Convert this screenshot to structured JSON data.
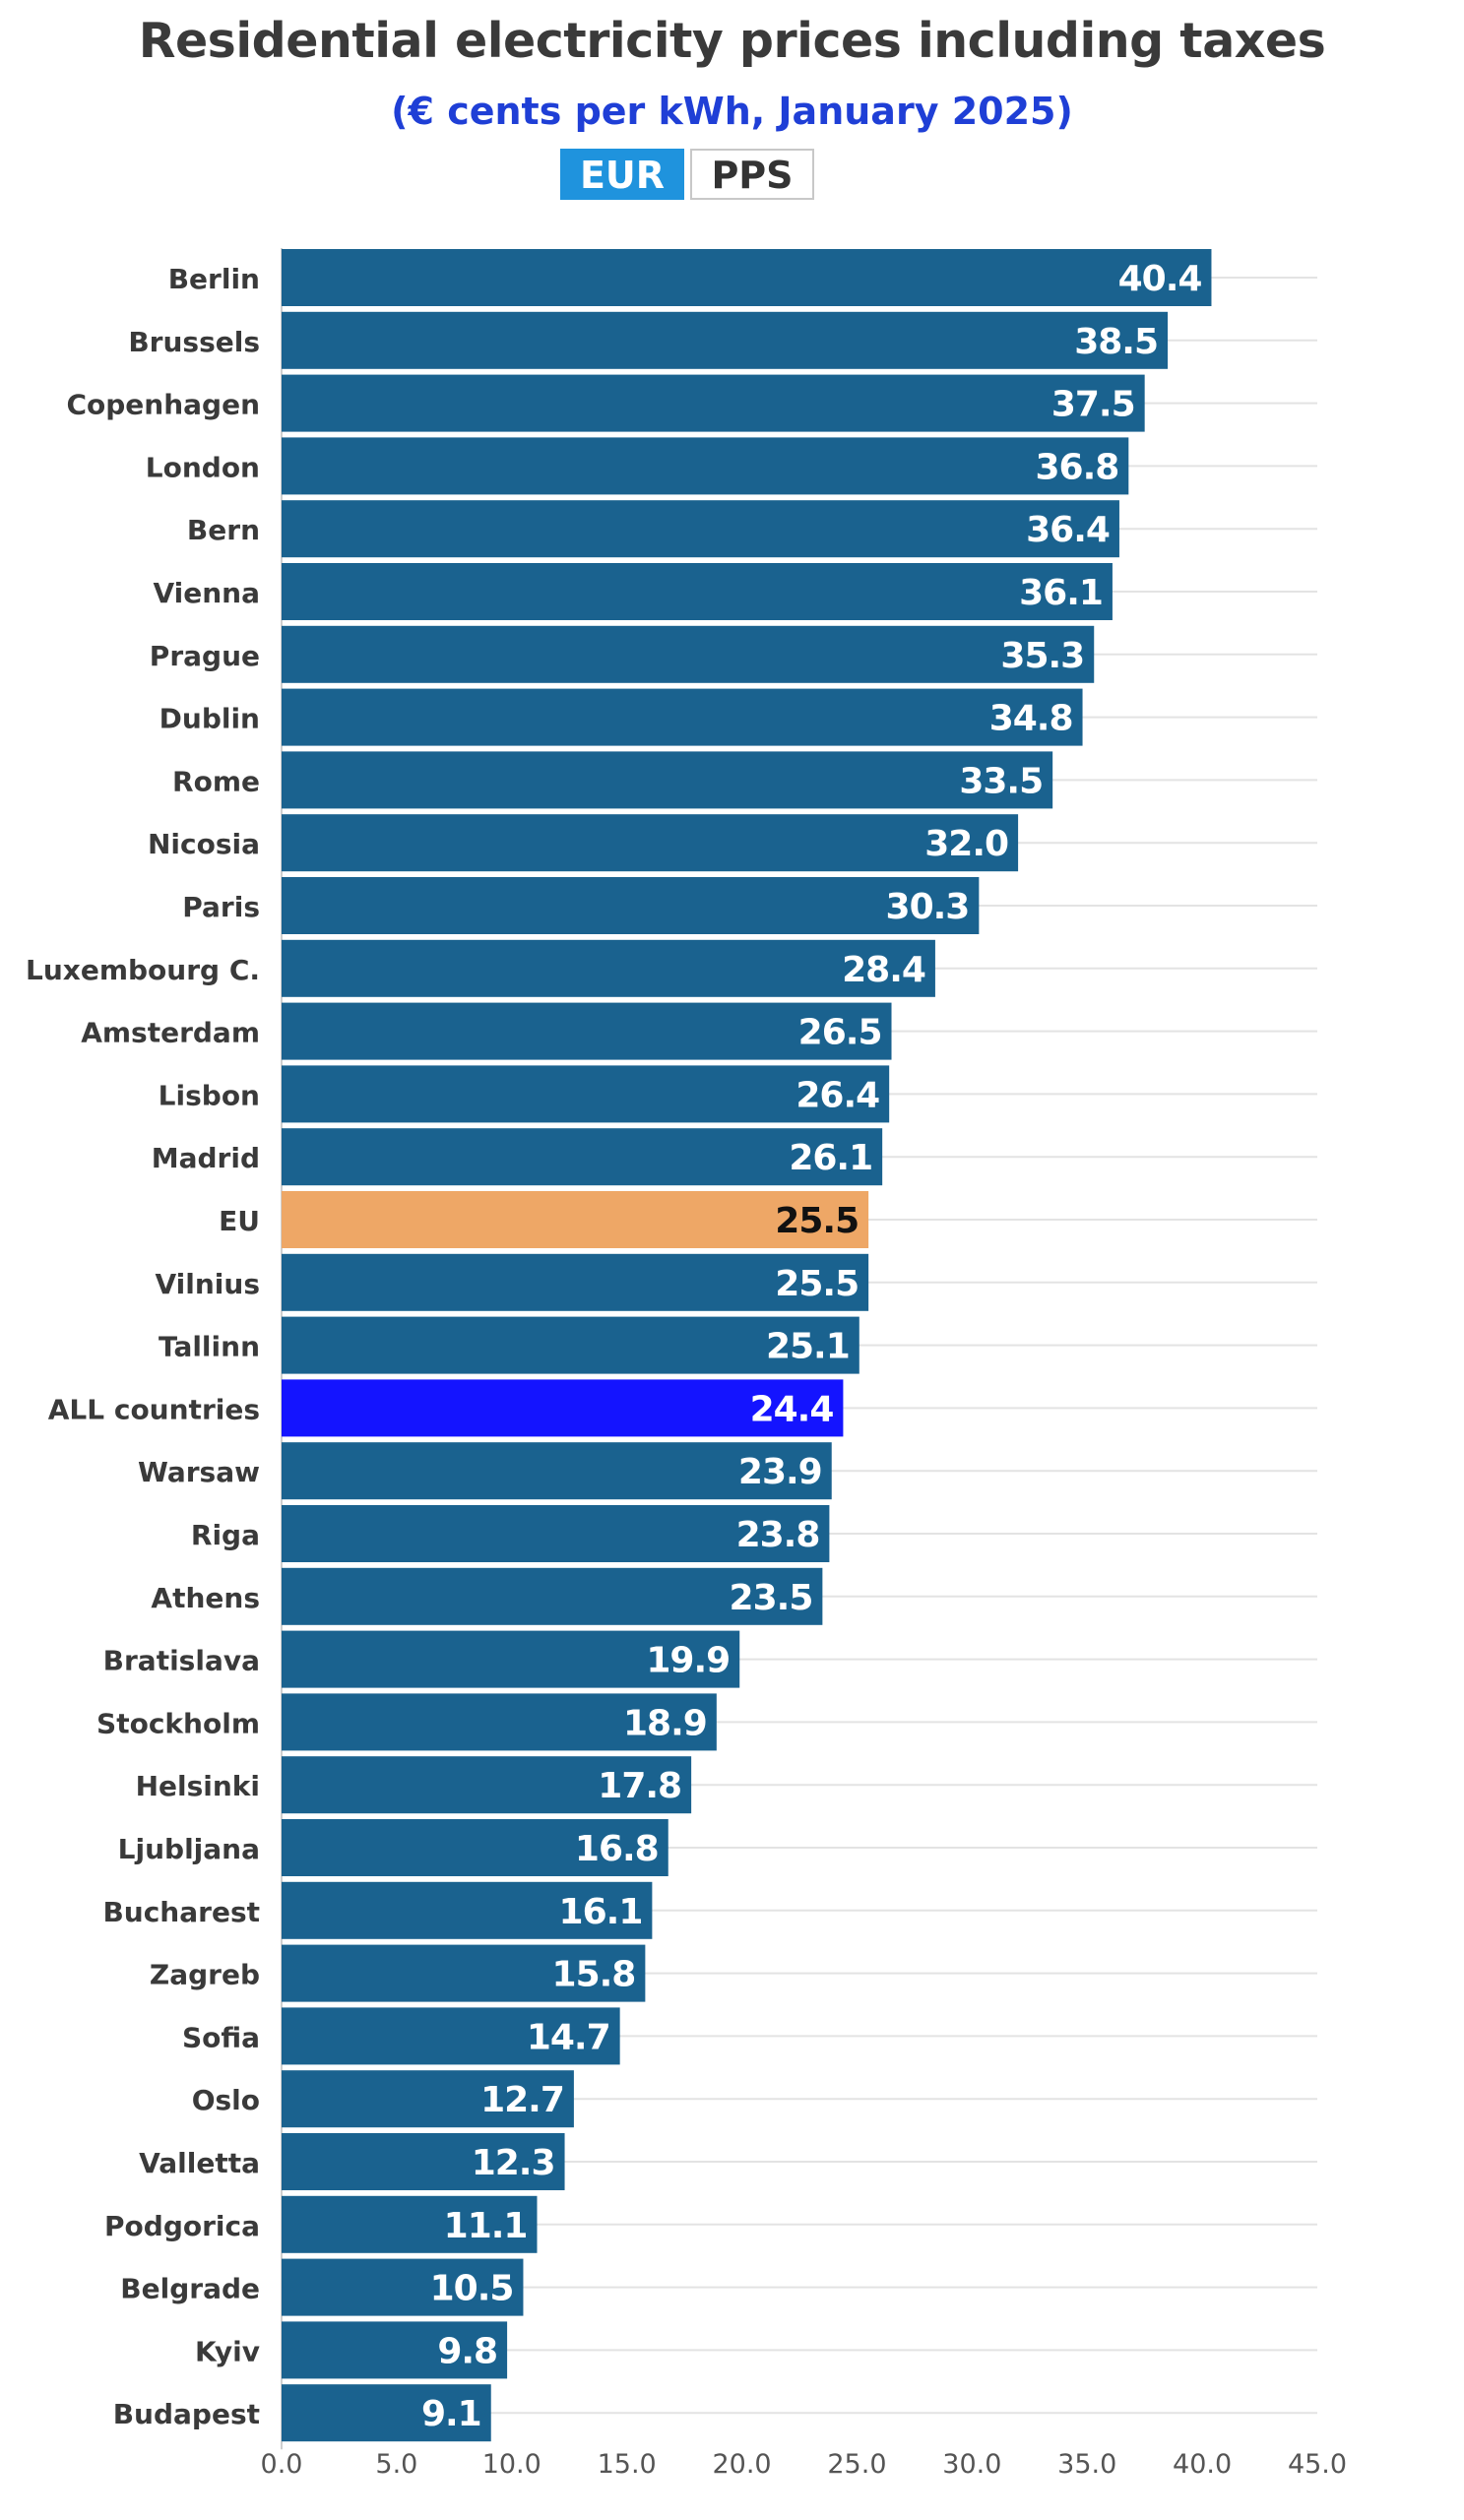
{
  "header": {
    "title": "Residential electricity prices including taxes",
    "subtitle": "(€ cents per kWh, January 2025)"
  },
  "toggle": {
    "options": [
      "EUR",
      "PPS"
    ],
    "selected": "EUR"
  },
  "colors": {
    "bar": "#1a628f",
    "eu": "#eea766",
    "all_countries": "#1414ff",
    "gridline": "#e3e3e3",
    "label": "#3a3a3a",
    "value_label": "#ffffff",
    "value_label_eu": "#111111"
  },
  "chart_data": {
    "type": "bar",
    "orientation": "horizontal",
    "categories": [
      "Berlin",
      "Brussels",
      "Copenhagen",
      "London",
      "Bern",
      "Vienna",
      "Prague",
      "Dublin",
      "Rome",
      "Nicosia",
      "Paris",
      "Luxembourg C.",
      "Amsterdam",
      "Lisbon",
      "Madrid",
      "EU",
      "Vilnius",
      "Tallinn",
      "ALL countries",
      "Warsaw",
      "Riga",
      "Athens",
      "Bratislava",
      "Stockholm",
      "Helsinki",
      "Ljubljana",
      "Bucharest",
      "Zagreb",
      "Sofia",
      "Oslo",
      "Valletta",
      "Podgorica",
      "Belgrade",
      "Kyiv",
      "Budapest"
    ],
    "values": [
      40.4,
      38.5,
      37.5,
      36.8,
      36.4,
      36.1,
      35.3,
      34.8,
      33.5,
      32.0,
      30.3,
      28.4,
      26.5,
      26.4,
      26.1,
      25.5,
      25.5,
      25.1,
      24.4,
      23.9,
      23.8,
      23.5,
      19.9,
      18.9,
      17.8,
      16.8,
      16.1,
      15.8,
      14.7,
      12.7,
      12.3,
      11.1,
      10.5,
      9.8,
      9.1
    ],
    "value_labels": [
      "40.4",
      "38.5",
      "37.5",
      "36.8",
      "36.4",
      "36.1",
      "35.3",
      "34.8",
      "33.5",
      "32.0",
      "30.3",
      "28.4",
      "26.5",
      "26.4",
      "26.1",
      "25.5",
      "25.5",
      "25.1",
      "24.4",
      "23.9",
      "23.8",
      "23.5",
      "19.9",
      "18.9",
      "17.8",
      "16.8",
      "16.1",
      "15.8",
      "14.7",
      "12.7",
      "12.3",
      "11.1",
      "10.5",
      "9.8",
      "9.1"
    ],
    "highlights": {
      "EU": "eu",
      "ALL countries": "all_countries"
    },
    "x_ticks": [
      0.0,
      5.0,
      10.0,
      15.0,
      20.0,
      25.0,
      30.0,
      35.0,
      40.0,
      45.0
    ],
    "x_tick_labels": [
      "0.0",
      "5.0",
      "10.0",
      "15.0",
      "20.0",
      "25.0",
      "30.0",
      "35.0",
      "40.0",
      "45.0"
    ],
    "xlim": [
      0,
      45
    ],
    "title": "Residential electricity prices including taxes",
    "subtitle": "(€ cents per kWh, January 2025)",
    "xlabel": "",
    "ylabel": "",
    "grid": true,
    "legend": "none"
  }
}
